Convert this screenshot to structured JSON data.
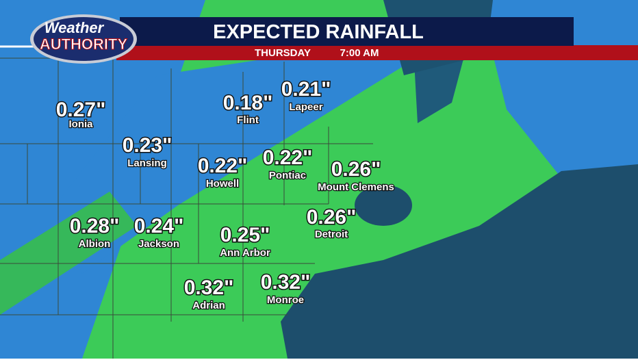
{
  "header": {
    "logo_top": "Weather",
    "logo_bottom": "AUTHORITY",
    "title": "EXPECTED RAINFALL",
    "day": "THURSDAY",
    "time": "7:00 AM"
  },
  "cities": [
    {
      "amount": "0.27\"",
      "name": "Ionia"
    },
    {
      "amount": "0.23\"",
      "name": "Lansing"
    },
    {
      "amount": "0.18\"",
      "name": "Flint"
    },
    {
      "amount": "0.21\"",
      "name": "Lapeer"
    },
    {
      "amount": "0.22\"",
      "name": "Howell"
    },
    {
      "amount": "0.22\"",
      "name": "Pontiac"
    },
    {
      "amount": "0.26\"",
      "name": "Mount Clemens"
    },
    {
      "amount": "0.28\"",
      "name": "Albion"
    },
    {
      "amount": "0.24\"",
      "name": "Jackson"
    },
    {
      "amount": "0.25\"",
      "name": "Ann Arbor"
    },
    {
      "amount": "0.26\"",
      "name": "Detroit"
    },
    {
      "amount": "0.32\"",
      "name": "Adrian"
    },
    {
      "amount": "0.32\"",
      "name": "Monroe"
    }
  ]
}
